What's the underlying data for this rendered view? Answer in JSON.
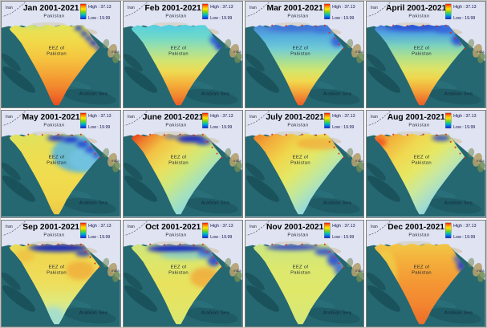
{
  "figure": {
    "legend": {
      "high": "High : 37.13",
      "low": "Low : 19.99"
    },
    "map_labels": {
      "iran": "Iran",
      "pakistan": "Pakistan",
      "eez_line1": "EEZ of",
      "eez_line2": "Pakistan",
      "arabian_sea": "Arabian Sea",
      "india": "India"
    },
    "colors": {
      "sea": "#256871",
      "sea_deep": "#123f48",
      "sea_mid": "#1b535d",
      "sea_light": "#35808a",
      "land": "#dfe3f2",
      "land_tan": "#b3a06e",
      "land_green": "#6f8b55",
      "land_tan_light": "#cdc09a",
      "border_dash": "#5a5a66",
      "panel_border": "#7d7d7d",
      "title_text": "#000000",
      "label_text": "#1d2433",
      "sea_label_text": "#132336",
      "legend_text": "#10104a",
      "red_dot": "#e22818"
    },
    "ramp_stops": [
      [
        0,
        "#fa1400"
      ],
      [
        16,
        "#ff9000"
      ],
      [
        33,
        "#ffe600"
      ],
      [
        52,
        "#7fd414"
      ],
      [
        70,
        "#00c2b4"
      ],
      [
        85,
        "#0070ee"
      ],
      [
        100,
        "#1a1ac8"
      ]
    ]
  },
  "months": [
    {
      "title": "Jan 2001-2021",
      "angle": "v",
      "stops": [
        [
          0,
          "#e2e45a"
        ],
        [
          18,
          "#f0dc4c"
        ],
        [
          40,
          "#f5c740"
        ],
        [
          60,
          "#f5a736"
        ],
        [
          78,
          "#f2862e"
        ],
        [
          92,
          "#ee6326"
        ],
        [
          100,
          "#e84c1e"
        ]
      ],
      "patches": [
        [
          98,
          34,
          5,
          3.5,
          "#1630d2",
          0.95
        ],
        [
          105,
          41,
          4.5,
          3.5,
          "#1630d2",
          0.95
        ],
        [
          111,
          47,
          4.5,
          3.5,
          "#1c38d6",
          0.95
        ],
        [
          117,
          53,
          5,
          4,
          "#1630d2",
          0.95
        ],
        [
          123,
          59,
          4,
          3.5,
          "#1c38d6",
          0.9
        ],
        [
          40,
          31,
          20,
          2.5,
          "#9cd8b0",
          0.45
        ]
      ],
      "dots": false
    },
    {
      "title": "Feb 2001-2021",
      "angle": "v",
      "stops": [
        [
          0,
          "#58d0dc"
        ],
        [
          15,
          "#6ed8cc"
        ],
        [
          30,
          "#a2e0a0"
        ],
        [
          45,
          "#d2e472"
        ],
        [
          58,
          "#eeda52"
        ],
        [
          72,
          "#f4b43c"
        ],
        [
          86,
          "#f28e30"
        ],
        [
          100,
          "#ee5c24"
        ]
      ],
      "patches": [
        [
          60,
          33,
          28,
          3.5,
          "#54cce4",
          0.8
        ],
        [
          118,
          49,
          8,
          7,
          "#2a50d8",
          0.85
        ],
        [
          123,
          57,
          6,
          6,
          "#1c38d0",
          0.9
        ]
      ],
      "dots": false
    },
    {
      "title": "Mar 2001-2021",
      "angle": "v",
      "stops": [
        [
          0,
          "#4a82d8"
        ],
        [
          15,
          "#54aede"
        ],
        [
          30,
          "#72ccd4"
        ],
        [
          45,
          "#a6de96"
        ],
        [
          58,
          "#d6e66a"
        ],
        [
          70,
          "#f0d84e"
        ],
        [
          84,
          "#f4a238"
        ],
        [
          100,
          "#ee5c26"
        ]
      ],
      "patches": [
        [
          62,
          34,
          34,
          4,
          "#3c6cd6",
          0.85
        ],
        [
          100,
          36,
          14,
          4,
          "#3c6cd6",
          0.8
        ],
        [
          117,
          51,
          8,
          7,
          "#2c52d8",
          0.8
        ]
      ],
      "dots": true
    },
    {
      "title": "April 2001-2021",
      "angle": "v",
      "stops": [
        [
          0,
          "#4472d8"
        ],
        [
          12,
          "#52a8de"
        ],
        [
          26,
          "#7cd2bc"
        ],
        [
          40,
          "#b0e08c"
        ],
        [
          54,
          "#dce468"
        ],
        [
          66,
          "#f0d64e"
        ],
        [
          82,
          "#f4a438"
        ],
        [
          100,
          "#ee5a26"
        ]
      ],
      "patches": [
        [
          60,
          33,
          36,
          4.5,
          "#2a50d6",
          0.9
        ],
        [
          100,
          36,
          14,
          4.5,
          "#3560da",
          0.85
        ],
        [
          116,
          49,
          8,
          7,
          "#2646d6",
          0.85
        ]
      ],
      "dots": true
    },
    {
      "title": "May 2001-2021",
      "angle": "v",
      "stops": [
        [
          0,
          "#dee25e"
        ],
        [
          25,
          "#ecde52"
        ],
        [
          55,
          "#f0dc4e"
        ],
        [
          80,
          "#f0d64a"
        ],
        [
          100,
          "#eec846"
        ]
      ],
      "patches": [
        [
          100,
          55,
          36,
          24,
          "#55b4e4",
          0.85
        ],
        [
          110,
          62,
          24,
          16,
          "#74c8ec",
          0.6
        ],
        [
          70,
          35,
          12,
          4,
          "#1c34cc",
          0.95
        ],
        [
          88,
          37,
          10,
          4,
          "#1c34cc",
          0.95
        ],
        [
          103,
          43,
          8,
          4.5,
          "#2442d2",
          0.9
        ],
        [
          113,
          50,
          7,
          4.5,
          "#2c4ed6",
          0.9
        ],
        [
          121,
          57,
          5,
          4,
          "#2c4ed6",
          0.85
        ]
      ],
      "dots": true
    },
    {
      "title": "June 2001-2021",
      "angle": "d",
      "stops": [
        [
          0,
          "#e03416"
        ],
        [
          12,
          "#ee7e2c"
        ],
        [
          26,
          "#f2c244"
        ],
        [
          42,
          "#ecde5a"
        ],
        [
          58,
          "#cfe87c"
        ],
        [
          74,
          "#a8e2b8"
        ],
        [
          88,
          "#8cd8da"
        ],
        [
          100,
          "#7cd0e4"
        ]
      ],
      "patches": [
        [
          86,
          36,
          18,
          5,
          "#1228c4",
          0.95
        ],
        [
          102,
          40,
          10,
          4,
          "#2038cc",
          0.85
        ],
        [
          62,
          33,
          10,
          3,
          "#3a5cd4",
          0.7
        ]
      ],
      "dots": true
    },
    {
      "title": "July 2001-2021",
      "angle": "d",
      "stops": [
        [
          0,
          "#ee7c28"
        ],
        [
          16,
          "#f2ae3a"
        ],
        [
          34,
          "#f0d64c"
        ],
        [
          52,
          "#e2e866"
        ],
        [
          68,
          "#c2e89c"
        ],
        [
          84,
          "#98dcd8"
        ],
        [
          100,
          "#68c0ea"
        ]
      ],
      "patches": [
        [
          95,
          42,
          30,
          8,
          "#f2a838",
          0.7
        ],
        [
          14,
          62,
          9,
          13,
          "#94d8dc",
          0.6
        ]
      ],
      "dots": true
    },
    {
      "title": "Aug 2001-2021",
      "angle": "d",
      "stops": [
        [
          0,
          "#ee7c28"
        ],
        [
          15,
          "#f2b43c"
        ],
        [
          32,
          "#f0d850"
        ],
        [
          50,
          "#e6e864"
        ],
        [
          66,
          "#c8e8a0"
        ],
        [
          82,
          "#a0dcd2"
        ],
        [
          100,
          "#50b0e4"
        ]
      ],
      "patches": [
        [
          16,
          41,
          9,
          6,
          "#ee4e20",
          0.8
        ],
        [
          95,
          35,
          12,
          4,
          "#2440cc",
          0.85
        ],
        [
          14,
          60,
          7,
          11,
          "#b4e0c4",
          0.55
        ]
      ],
      "dots": true
    },
    {
      "title": "Sep 2001-2021",
      "angle": "v",
      "stops": [
        [
          0,
          "#e8da54"
        ],
        [
          25,
          "#f0d852"
        ],
        [
          50,
          "#eede5c"
        ],
        [
          70,
          "#e0e87a"
        ],
        [
          85,
          "#c8e8a8"
        ],
        [
          100,
          "#aee2c6"
        ]
      ],
      "patches": [
        [
          72,
          35,
          38,
          5,
          "#1024bc",
          0.95
        ],
        [
          104,
          42,
          10,
          4,
          "#1c34c4",
          0.85
        ],
        [
          100,
          64,
          18,
          12,
          "#f0a838",
          0.75
        ],
        [
          30,
          45,
          12,
          8,
          "#f0b83e",
          0.6
        ],
        [
          66,
          122,
          13,
          11,
          "#9edcd4",
          0.75
        ]
      ],
      "dots": true
    },
    {
      "title": "Oct 2001-2021",
      "angle": "v",
      "stops": [
        [
          0,
          "#cce47c"
        ],
        [
          25,
          "#dee66a"
        ],
        [
          50,
          "#e8e25e"
        ],
        [
          75,
          "#e4e464"
        ],
        [
          100,
          "#d8e870"
        ]
      ],
      "patches": [
        [
          68,
          36,
          38,
          5,
          "#1022c2",
          0.95
        ],
        [
          104,
          42,
          10,
          5,
          "#1c30c8",
          0.9
        ],
        [
          115,
          51,
          8,
          8,
          "#2a46d2",
          0.9
        ],
        [
          80,
          45,
          34,
          5,
          "#6ec8e2",
          0.6
        ],
        [
          104,
          73,
          19,
          13,
          "#f2a438",
          0.75
        ]
      ],
      "dots": true
    },
    {
      "title": "Nov 2001-2021",
      "angle": "v",
      "stops": [
        [
          0,
          "#c8e482"
        ],
        [
          30,
          "#dce86e"
        ],
        [
          60,
          "#e0e86a"
        ],
        [
          100,
          "#d4e878"
        ]
      ],
      "patches": [
        [
          60,
          34,
          34,
          4,
          "#2236cc",
          0.85
        ],
        [
          100,
          40,
          12,
          5,
          "#2a48d2",
          0.85
        ],
        [
          113,
          50,
          9,
          9,
          "#2c50d6",
          0.9
        ],
        [
          120,
          62,
          7,
          9,
          "#3a68da",
          0.85
        ],
        [
          124,
          70,
          5,
          7,
          "#4a80e0",
          0.7
        ]
      ],
      "dots": true
    },
    {
      "title": "Dec 2001-2021",
      "angle": "v",
      "stops": [
        [
          0,
          "#f2c646"
        ],
        [
          25,
          "#f4ac3a"
        ],
        [
          50,
          "#f49634"
        ],
        [
          75,
          "#f28630"
        ],
        [
          100,
          "#ee6c28"
        ]
      ],
      "patches": [
        [
          24,
          70,
          15,
          32,
          "#f0d44c",
          0.65
        ],
        [
          121,
          57,
          6,
          8,
          "#2040cc",
          0.9
        ],
        [
          116,
          49,
          5,
          5,
          "#3a5ad6",
          0.8
        ],
        [
          125,
          66,
          4,
          6,
          "#2a4cd2",
          0.85
        ]
      ],
      "dots": false
    }
  ]
}
